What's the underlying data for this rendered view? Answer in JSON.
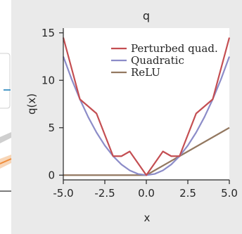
{
  "chart_data": {
    "type": "line",
    "title": "q",
    "xlabel": "x",
    "ylabel": "q(x)",
    "xlim": [
      -5.0,
      5.0
    ],
    "ylim": [
      -0.5,
      15.5
    ],
    "x_ticks": [
      "-5.0",
      "-2.5",
      "0.0",
      "2.5",
      "5.0"
    ],
    "x_tick_values": [
      -5.0,
      -2.5,
      0.0,
      2.5,
      5.0
    ],
    "y_ticks": [
      "0",
      "5",
      "10",
      "15"
    ],
    "y_tick_values": [
      0,
      5,
      10,
      15
    ],
    "grid": false,
    "legend_position": "top-right",
    "series": [
      {
        "name": "Perturbed quad.",
        "color": "#c44e52",
        "x": [
          -5.0,
          -4.0,
          -3.0,
          -2.0,
          -1.5,
          -1.0,
          0.0,
          1.0,
          1.5,
          2.0,
          3.0,
          4.0,
          5.0
        ],
        "y": [
          14.5,
          8.0,
          6.5,
          2.0,
          2.0,
          2.5,
          0.0,
          2.5,
          2.0,
          2.0,
          6.5,
          8.0,
          14.5
        ]
      },
      {
        "name": "Quadratic",
        "color": "#8c8cc8",
        "x": [
          -5.0,
          -4.5,
          -4.0,
          -3.5,
          -3.0,
          -2.5,
          -2.0,
          -1.5,
          -1.0,
          -0.5,
          0.0,
          0.5,
          1.0,
          1.5,
          2.0,
          2.5,
          3.0,
          3.5,
          4.0,
          4.5,
          5.0
        ],
        "y": [
          12.5,
          10.125,
          8.0,
          6.125,
          4.5,
          3.125,
          2.0,
          1.125,
          0.5,
          0.125,
          0.0,
          0.125,
          0.5,
          1.125,
          2.0,
          3.125,
          4.5,
          6.125,
          8.0,
          10.125,
          12.5
        ]
      },
      {
        "name": "ReLU",
        "color": "#937860",
        "x": [
          -5.0,
          0.0,
          5.0
        ],
        "y": [
          0.0,
          0.0,
          5.0
        ]
      }
    ]
  }
}
